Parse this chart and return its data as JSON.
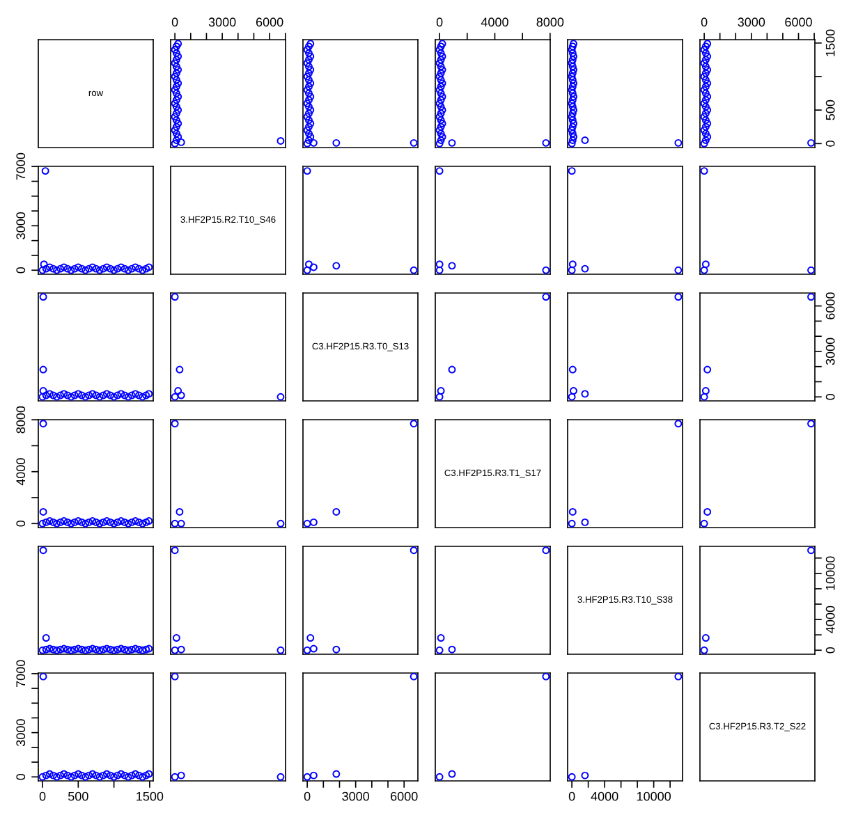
{
  "chart_data": [
    {
      "type": "other",
      "title": "row"
    },
    {
      "type": "scatter",
      "marker": "circle",
      "tick_labels": "x",
      "xlim": [
        -270,
        7010
      ],
      "ylim": [
        -59,
        1550
      ],
      "xticks": [
        0,
        {
          "value": 1000,
          "label": null
        },
        {
          "value": 2000,
          "label": null
        },
        3000,
        {
          "value": 4000,
          "label": null
        },
        {
          "value": 5000,
          "label": null
        },
        6000,
        {
          "value": 7000,
          "label": null
        }
      ],
      "x": [
        0,
        100,
        200,
        100,
        0,
        100,
        200,
        100,
        0,
        100,
        200,
        100,
        0,
        100,
        200,
        100,
        0,
        100,
        200,
        100,
        0,
        100,
        200,
        100,
        0,
        100,
        200,
        100,
        0,
        100,
        200,
        6700,
        400
      ],
      "series": [
        {
          "color": "#0000ff",
          "values": [
            0,
            50,
            100,
            150,
            200,
            250,
            300,
            350,
            400,
            450,
            500,
            550,
            600,
            650,
            700,
            750,
            800,
            850,
            900,
            950,
            1000,
            1050,
            1100,
            1150,
            1200,
            1250,
            1300,
            1350,
            1400,
            1450,
            1490,
            40,
            20
          ]
        }
      ]
    },
    {
      "type": "scatter",
      "marker": "circle",
      "tick_labels": false,
      "xlim": [
        -264,
        6854
      ],
      "ylim": [
        -59,
        1550
      ],
      "x": [
        0,
        100,
        200,
        100,
        0,
        100,
        200,
        100,
        0,
        100,
        200,
        100,
        0,
        100,
        200,
        100,
        0,
        100,
        200,
        100,
        0,
        100,
        200,
        100,
        0,
        100,
        200,
        100,
        0,
        100,
        200,
        6600,
        1800,
        400
      ],
      "series": [
        {
          "color": "#0000ff",
          "values": [
            0,
            50,
            100,
            150,
            200,
            250,
            300,
            350,
            400,
            450,
            500,
            550,
            600,
            650,
            700,
            750,
            800,
            850,
            900,
            950,
            1000,
            1050,
            1100,
            1150,
            1200,
            1250,
            1300,
            1350,
            1400,
            1450,
            1490,
            10,
            10,
            10
          ]
        }
      ]
    },
    {
      "type": "scatter",
      "marker": "circle",
      "tick_labels": "x",
      "xlim": [
        -308,
        8008
      ],
      "ylim": [
        -59,
        1550
      ],
      "xticks": [
        0,
        {
          "value": 2000,
          "label": null
        },
        4000,
        {
          "value": 6000,
          "label": null
        },
        8000
      ],
      "x": [
        0,
        100,
        200,
        100,
        0,
        100,
        200,
        100,
        0,
        100,
        200,
        100,
        0,
        100,
        200,
        100,
        0,
        100,
        200,
        100,
        0,
        100,
        200,
        100,
        0,
        100,
        200,
        100,
        0,
        100,
        200,
        7700,
        900
      ],
      "series": [
        {
          "color": "#0000ff",
          "values": [
            0,
            50,
            100,
            150,
            200,
            250,
            300,
            350,
            400,
            450,
            500,
            550,
            600,
            650,
            700,
            750,
            800,
            850,
            900,
            950,
            1000,
            1050,
            1100,
            1150,
            1200,
            1250,
            1300,
            1350,
            1400,
            1450,
            1490,
            10,
            10
          ]
        }
      ]
    },
    {
      "type": "scatter",
      "marker": "circle",
      "tick_labels": false,
      "xlim": [
        -520,
        13520
      ],
      "ylim": [
        -59,
        1550
      ],
      "x": [
        0,
        100,
        200,
        100,
        0,
        100,
        200,
        100,
        0,
        100,
        200,
        100,
        0,
        100,
        200,
        100,
        0,
        100,
        200,
        100,
        0,
        100,
        200,
        100,
        0,
        100,
        200,
        100,
        0,
        100,
        200,
        13000,
        1600
      ],
      "series": [
        {
          "color": "#0000ff",
          "values": [
            0,
            50,
            100,
            150,
            200,
            250,
            300,
            350,
            400,
            450,
            500,
            550,
            600,
            650,
            700,
            750,
            800,
            850,
            900,
            950,
            1000,
            1050,
            1100,
            1150,
            1200,
            1250,
            1300,
            1350,
            1400,
            1450,
            1490,
            10,
            50
          ]
        }
      ]
    },
    {
      "type": "scatter",
      "marker": "circle",
      "xlim": [
        -271,
        7041
      ],
      "ylim": [
        -59,
        1550
      ],
      "xticks": [
        0,
        {
          "value": 1000,
          "label": null
        },
        {
          "value": 2000,
          "label": null
        },
        3000,
        {
          "value": 4000,
          "label": null
        },
        {
          "value": 5000,
          "label": null
        },
        6000,
        {
          "value": 7000,
          "label": null
        }
      ],
      "yticks": [
        0,
        500,
        {
          "value": 1000,
          "label": null
        },
        1500
      ],
      "x": [
        0,
        100,
        200,
        100,
        0,
        100,
        200,
        100,
        0,
        100,
        200,
        100,
        0,
        100,
        200,
        100,
        0,
        100,
        200,
        100,
        0,
        100,
        200,
        100,
        0,
        100,
        200,
        100,
        0,
        100,
        200,
        6800
      ],
      "series": [
        {
          "color": "#0000ff",
          "values": [
            0,
            50,
            100,
            150,
            200,
            250,
            300,
            350,
            400,
            450,
            500,
            550,
            600,
            650,
            700,
            750,
            800,
            850,
            900,
            950,
            1000,
            1050,
            1100,
            1150,
            1200,
            1250,
            1300,
            1350,
            1400,
            1450,
            1490,
            10
          ]
        }
      ]
    },
    {
      "type": "scatter",
      "marker": "circle",
      "tick_labels": "y",
      "xlim": [
        -59,
        1550
      ],
      "ylim": [
        -270,
        7010
      ],
      "yticks": [
        0,
        {
          "value": 1000,
          "label": null
        },
        {
          "value": 2000,
          "label": null
        },
        3000,
        {
          "value": 4000,
          "label": null
        },
        {
          "value": 5000,
          "label": null
        },
        {
          "value": 6000,
          "label": null
        },
        7000
      ],
      "x": [
        0,
        50,
        100,
        150,
        200,
        250,
        300,
        350,
        400,
        450,
        500,
        550,
        600,
        650,
        700,
        750,
        800,
        850,
        900,
        950,
        1000,
        1050,
        1100,
        1150,
        1200,
        1250,
        1300,
        1350,
        1400,
        1450,
        1490,
        40,
        20
      ],
      "series": [
        {
          "color": "#0000ff",
          "values": [
            0,
            100,
            200,
            100,
            0,
            100,
            200,
            100,
            0,
            100,
            200,
            100,
            0,
            100,
            200,
            100,
            0,
            100,
            200,
            100,
            0,
            100,
            200,
            100,
            0,
            100,
            200,
            100,
            0,
            100,
            200,
            6700,
            400
          ]
        }
      ]
    },
    {
      "type": "other",
      "title": "3.HF2P15.R2.T10_S46"
    },
    {
      "type": "scatter",
      "marker": "circle",
      "tick_labels": false,
      "xlim": [
        -264,
        6854
      ],
      "ylim": [
        -270,
        7010
      ],
      "x": [
        0,
        6600,
        0,
        1800,
        400,
        100
      ],
      "series": [
        {
          "color": "#0000ff",
          "values": [
            0,
            0,
            6700,
            300,
            200,
            400
          ]
        }
      ]
    },
    {
      "type": "scatter",
      "marker": "circle",
      "tick_labels": false,
      "xlim": [
        -308,
        8008
      ],
      "ylim": [
        -270,
        7010
      ],
      "x": [
        0,
        7700,
        0,
        900,
        0
      ],
      "series": [
        {
          "color": "#0000ff",
          "values": [
            0,
            0,
            6700,
            300,
            400
          ]
        }
      ]
    },
    {
      "type": "scatter",
      "marker": "circle",
      "tick_labels": false,
      "xlim": [
        -520,
        13520
      ],
      "ylim": [
        -270,
        7010
      ],
      "x": [
        0,
        13000,
        0,
        1600,
        100
      ],
      "series": [
        {
          "color": "#0000ff",
          "values": [
            0,
            0,
            6700,
            100,
            400
          ]
        }
      ]
    },
    {
      "type": "scatter",
      "marker": "circle",
      "tick_labels": false,
      "xlim": [
        -271,
        7041
      ],
      "ylim": [
        -270,
        7010
      ],
      "x": [
        0,
        6800,
        0,
        100
      ],
      "series": [
        {
          "color": "#0000ff",
          "values": [
            0,
            0,
            6700,
            400
          ]
        }
      ]
    },
    {
      "type": "scatter",
      "marker": "circle",
      "tick_labels": false,
      "xlim": [
        -59,
        1550
      ],
      "ylim": [
        -264,
        6854
      ],
      "x": [
        0,
        50,
        100,
        150,
        200,
        250,
        300,
        350,
        400,
        450,
        500,
        550,
        600,
        650,
        700,
        750,
        800,
        850,
        900,
        950,
        1000,
        1050,
        1100,
        1150,
        1200,
        1250,
        1300,
        1350,
        1400,
        1450,
        1490,
        10,
        10,
        10
      ],
      "series": [
        {
          "color": "#0000ff",
          "values": [
            0,
            100,
            200,
            100,
            0,
            100,
            200,
            100,
            0,
            100,
            200,
            100,
            0,
            100,
            200,
            100,
            0,
            100,
            200,
            100,
            0,
            100,
            200,
            100,
            0,
            100,
            200,
            100,
            0,
            100,
            200,
            6600,
            1800,
            400
          ]
        }
      ]
    },
    {
      "type": "scatter",
      "marker": "circle",
      "tick_labels": false,
      "xlim": [
        -270,
        7010
      ],
      "ylim": [
        -264,
        6854
      ],
      "x": [
        0,
        0,
        6700,
        300,
        200,
        400
      ],
      "series": [
        {
          "color": "#0000ff",
          "values": [
            0,
            6600,
            0,
            1800,
            400,
            100
          ]
        }
      ]
    },
    {
      "type": "other",
      "title": "C3.HF2P15.R3.T0_S13"
    },
    {
      "type": "scatter",
      "marker": "circle",
      "tick_labels": false,
      "xlim": [
        -308,
        8008
      ],
      "ylim": [
        -264,
        6854
      ],
      "x": [
        0,
        7700,
        900,
        100
      ],
      "series": [
        {
          "color": "#0000ff",
          "values": [
            0,
            6600,
            1800,
            400
          ]
        }
      ]
    },
    {
      "type": "scatter",
      "marker": "circle",
      "tick_labels": false,
      "xlim": [
        -520,
        13520
      ],
      "ylim": [
        -264,
        6854
      ],
      "x": [
        0,
        13000,
        100,
        1600,
        200
      ],
      "series": [
        {
          "color": "#0000ff",
          "values": [
            0,
            6600,
            1800,
            200,
            400
          ]
        }
      ]
    },
    {
      "type": "scatter",
      "marker": "circle",
      "tick_labels": "y",
      "xlim": [
        -271,
        7041
      ],
      "ylim": [
        -264,
        6854
      ],
      "yticks": [
        0,
        {
          "value": 1000,
          "label": null
        },
        {
          "value": 2000,
          "label": null
        },
        3000,
        {
          "value": 4000,
          "label": null
        },
        {
          "value": 5000,
          "label": null
        },
        6000
      ],
      "x": [
        0,
        6800,
        200,
        100
      ],
      "series": [
        {
          "color": "#0000ff",
          "values": [
            0,
            6600,
            1800,
            400
          ]
        }
      ]
    },
    {
      "type": "scatter",
      "marker": "circle",
      "tick_labels": "y",
      "xlim": [
        -59,
        1550
      ],
      "ylim": [
        -308,
        8008
      ],
      "yticks": [
        0,
        {
          "value": 2000,
          "label": null
        },
        4000,
        {
          "value": 6000,
          "label": null
        },
        8000
      ],
      "x": [
        0,
        50,
        100,
        150,
        200,
        250,
        300,
        350,
        400,
        450,
        500,
        550,
        600,
        650,
        700,
        750,
        800,
        850,
        900,
        950,
        1000,
        1050,
        1100,
        1150,
        1200,
        1250,
        1300,
        1350,
        1400,
        1450,
        1490,
        10,
        10
      ],
      "series": [
        {
          "color": "#0000ff",
          "values": [
            0,
            100,
            200,
            100,
            0,
            100,
            200,
            100,
            0,
            100,
            200,
            100,
            0,
            100,
            200,
            100,
            0,
            100,
            200,
            100,
            0,
            100,
            200,
            100,
            0,
            100,
            200,
            100,
            0,
            100,
            200,
            7700,
            900
          ]
        }
      ]
    },
    {
      "type": "scatter",
      "marker": "circle",
      "tick_labels": false,
      "xlim": [
        -270,
        7010
      ],
      "ylim": [
        -308,
        8008
      ],
      "x": [
        0,
        0,
        6700,
        300,
        400
      ],
      "series": [
        {
          "color": "#0000ff",
          "values": [
            0,
            7700,
            0,
            900,
            0
          ]
        }
      ]
    },
    {
      "type": "scatter",
      "marker": "circle",
      "tick_labels": false,
      "xlim": [
        -264,
        6854
      ],
      "ylim": [
        -308,
        8008
      ],
      "x": [
        0,
        6600,
        1800,
        400
      ],
      "series": [
        {
          "color": "#0000ff",
          "values": [
            0,
            7700,
            900,
            100
          ]
        }
      ]
    },
    {
      "type": "other",
      "title": "C3.HF2P15.R3.T1_S17"
    },
    {
      "type": "scatter",
      "marker": "circle",
      "tick_labels": false,
      "xlim": [
        -520,
        13520
      ],
      "ylim": [
        -308,
        8008
      ],
      "x": [
        0,
        13000,
        100,
        1600
      ],
      "series": [
        {
          "color": "#0000ff",
          "values": [
            0,
            7700,
            900,
            100
          ]
        }
      ]
    },
    {
      "type": "scatter",
      "marker": "circle",
      "tick_labels": false,
      "xlim": [
        -271,
        7041
      ],
      "ylim": [
        -308,
        8008
      ],
      "x": [
        0,
        6800,
        200
      ],
      "series": [
        {
          "color": "#0000ff",
          "values": [
            0,
            7700,
            900
          ]
        }
      ]
    },
    {
      "type": "scatter",
      "marker": "circle",
      "tick_labels": false,
      "xlim": [
        -59,
        1550
      ],
      "ylim": [
        -520,
        13520
      ],
      "x": [
        0,
        50,
        100,
        150,
        200,
        250,
        300,
        350,
        400,
        450,
        500,
        550,
        600,
        650,
        700,
        750,
        800,
        850,
        900,
        950,
        1000,
        1050,
        1100,
        1150,
        1200,
        1250,
        1300,
        1350,
        1400,
        1450,
        1490,
        10,
        50
      ],
      "series": [
        {
          "color": "#0000ff",
          "values": [
            0,
            100,
            200,
            100,
            0,
            100,
            200,
            100,
            0,
            100,
            200,
            100,
            0,
            100,
            200,
            100,
            0,
            100,
            200,
            100,
            0,
            100,
            200,
            100,
            0,
            100,
            200,
            100,
            0,
            100,
            200,
            13000,
            1600
          ]
        }
      ]
    },
    {
      "type": "scatter",
      "marker": "circle",
      "tick_labels": false,
      "xlim": [
        -270,
        7010
      ],
      "ylim": [
        -520,
        13520
      ],
      "x": [
        0,
        0,
        6700,
        100,
        400
      ],
      "series": [
        {
          "color": "#0000ff",
          "values": [
            0,
            13000,
            0,
            1600,
            100
          ]
        }
      ]
    },
    {
      "type": "scatter",
      "marker": "circle",
      "tick_labels": false,
      "xlim": [
        -264,
        6854
      ],
      "ylim": [
        -520,
        13520
      ],
      "x": [
        0,
        6600,
        1800,
        200,
        400
      ],
      "series": [
        {
          "color": "#0000ff",
          "values": [
            0,
            13000,
            100,
            1600,
            200
          ]
        }
      ]
    },
    {
      "type": "scatter",
      "marker": "circle",
      "tick_labels": false,
      "xlim": [
        -308,
        8008
      ],
      "ylim": [
        -520,
        13520
      ],
      "x": [
        0,
        7700,
        900,
        100
      ],
      "series": [
        {
          "color": "#0000ff",
          "values": [
            0,
            13000,
            100,
            1600
          ]
        }
      ]
    },
    {
      "type": "other",
      "title": "3.HF2P15.R3.T10_S38"
    },
    {
      "type": "scatter",
      "marker": "circle",
      "tick_labels": "y",
      "xlim": [
        -271,
        7041
      ],
      "ylim": [
        -520,
        13520
      ],
      "yticks": [
        0,
        {
          "value": 2000,
          "label": null
        },
        4000,
        {
          "value": 6000,
          "label": null
        },
        {
          "value": 8000,
          "label": null
        },
        10000,
        {
          "value": 12000,
          "label": null
        }
      ],
      "x": [
        0,
        6800,
        100
      ],
      "series": [
        {
          "color": "#0000ff",
          "values": [
            0,
            13000,
            1600
          ]
        }
      ]
    },
    {
      "type": "scatter",
      "marker": "circle",
      "xlim": [
        -59,
        1550
      ],
      "ylim": [
        -271,
        7041
      ],
      "xticks": [
        0,
        500,
        {
          "value": 1000,
          "label": null
        },
        1500
      ],
      "yticks": [
        0,
        {
          "value": 1000,
          "label": null
        },
        {
          "value": 2000,
          "label": null
        },
        3000,
        {
          "value": 4000,
          "label": null
        },
        {
          "value": 5000,
          "label": null
        },
        {
          "value": 6000,
          "label": null
        },
        7000
      ],
      "x": [
        0,
        50,
        100,
        150,
        200,
        250,
        300,
        350,
        400,
        450,
        500,
        550,
        600,
        650,
        700,
        750,
        800,
        850,
        900,
        950,
        1000,
        1050,
        1100,
        1150,
        1200,
        1250,
        1300,
        1350,
        1400,
        1450,
        1490,
        10
      ],
      "series": [
        {
          "color": "#0000ff",
          "values": [
            0,
            100,
            200,
            100,
            0,
            100,
            200,
            100,
            0,
            100,
            200,
            100,
            0,
            100,
            200,
            100,
            0,
            100,
            200,
            100,
            0,
            100,
            200,
            100,
            0,
            100,
            200,
            100,
            0,
            100,
            200,
            6800
          ]
        }
      ]
    },
    {
      "type": "scatter",
      "marker": "circle",
      "tick_labels": false,
      "xlim": [
        -270,
        7010
      ],
      "ylim": [
        -271,
        7041
      ],
      "x": [
        0,
        0,
        6700,
        400
      ],
      "series": [
        {
          "color": "#0000ff",
          "values": [
            0,
            6800,
            0,
            100
          ]
        }
      ]
    },
    {
      "type": "scatter",
      "marker": "circle",
      "tick_labels": "x",
      "xlim": [
        -264,
        6854
      ],
      "ylim": [
        -271,
        7041
      ],
      "xticks": [
        0,
        {
          "value": 1000,
          "label": null
        },
        {
          "value": 2000,
          "label": null
        },
        3000,
        {
          "value": 4000,
          "label": null
        },
        {
          "value": 5000,
          "label": null
        },
        6000
      ],
      "x": [
        0,
        6600,
        1800,
        400
      ],
      "series": [
        {
          "color": "#0000ff",
          "values": [
            0,
            6800,
            200,
            100
          ]
        }
      ]
    },
    {
      "type": "scatter",
      "marker": "circle",
      "tick_labels": false,
      "xlim": [
        -308,
        8008
      ],
      "ylim": [
        -271,
        7041
      ],
      "x": [
        0,
        7700,
        900
      ],
      "series": [
        {
          "color": "#0000ff",
          "values": [
            0,
            6800,
            200
          ]
        }
      ]
    },
    {
      "type": "scatter",
      "marker": "circle",
      "tick_labels": "x",
      "xlim": [
        -520,
        13520
      ],
      "ylim": [
        -271,
        7041
      ],
      "xticks": [
        0,
        {
          "value": 2000,
          "label": null
        },
        4000,
        {
          "value": 6000,
          "label": null
        },
        {
          "value": 8000,
          "label": null
        },
        10000,
        {
          "value": 12000,
          "label": null
        }
      ],
      "x": [
        0,
        13000,
        1600
      ],
      "series": [
        {
          "color": "#0000ff",
          "values": [
            0,
            6800,
            100
          ]
        }
      ]
    },
    {
      "type": "other",
      "title": "C3.HF2P15.R3.T2_S22"
    }
  ]
}
